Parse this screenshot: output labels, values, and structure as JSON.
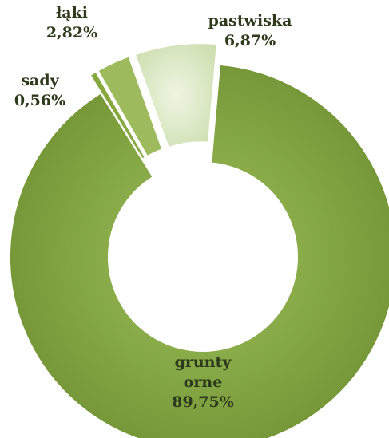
{
  "chart_data": {
    "type": "pie",
    "variant": "exploded-donut",
    "title": "",
    "slices": [
      {
        "label": "grunty orne",
        "label_lines": [
          "grunty",
          "orne"
        ],
        "value_label": "89,75%",
        "value": 89.75,
        "color": "#7a9b3a"
      },
      {
        "label": "sady",
        "label_lines": [
          "sady"
        ],
        "value_label": "0,56%",
        "value": 0.56,
        "color": "#86a83f"
      },
      {
        "label": "łąki",
        "label_lines": [
          "łąki"
        ],
        "value_label": "2,82%",
        "value": 2.82,
        "color": "#9dbb5c"
      },
      {
        "label": "pastwiska",
        "label_lines": [
          "pastwiska"
        ],
        "value_label": "6,87%",
        "value": 6.87,
        "color": "#dde9c8"
      }
    ],
    "legend": "none",
    "grid": false
  }
}
